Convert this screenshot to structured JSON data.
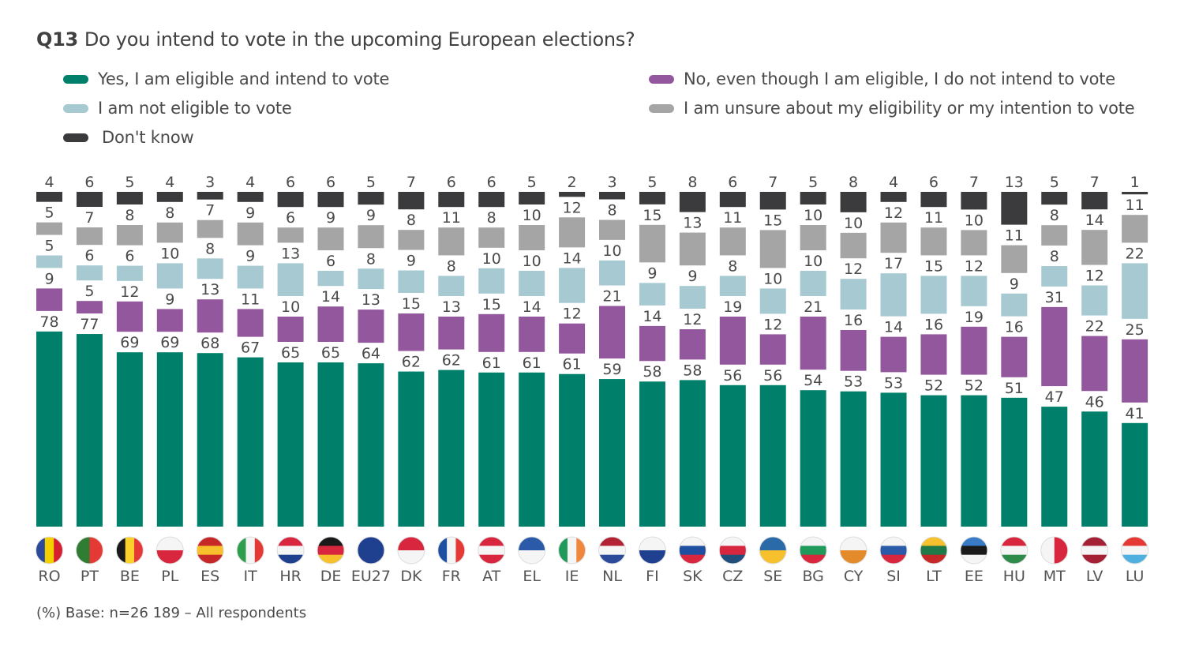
{
  "title": {
    "prefix": "Q13",
    "text": "Do you intend to vote in the upcoming European elections?"
  },
  "legend": [
    {
      "key": "yes",
      "label": "Yes, I am eligible and intend to vote",
      "color": "#00806a"
    },
    {
      "key": "not_eligible",
      "label": "I am not eligible to vote",
      "color": "#a6c9d2"
    },
    {
      "key": "dont_know",
      "label": "Don't know",
      "color": "#3b3b3d"
    },
    {
      "key": "no",
      "label": "No, even though I am eligible, I do not intend to vote",
      "color": "#93579e"
    },
    {
      "key": "unsure",
      "label": "I am unsure about my eligibility or my intention to vote",
      "color": "#a5a5a5"
    }
  ],
  "footnote": "(%) Base: n=26 189 – All respondents",
  "chart_data": {
    "type": "bar",
    "stacked": true,
    "title": "Do you intend to vote in the upcoming European elections?",
    "xlabel": "",
    "ylabel": "%",
    "categories": [
      "RO",
      "PT",
      "BE",
      "PL",
      "ES",
      "IT",
      "HR",
      "DE",
      "EU27",
      "DK",
      "FR",
      "AT",
      "EL",
      "IE",
      "NL",
      "FI",
      "SK",
      "CZ",
      "SE",
      "BG",
      "CY",
      "SI",
      "LT",
      "EE",
      "HU",
      "MT",
      "LV",
      "LU"
    ],
    "stack_order_bottom_to_top": [
      "yes",
      "no",
      "not_eligible",
      "unsure",
      "dont_know"
    ],
    "series": [
      {
        "key": "yes",
        "name": "Yes, I am eligible and intend to vote",
        "color": "#00806a",
        "values": [
          78,
          77,
          69,
          69,
          68,
          67,
          65,
          65,
          64,
          62,
          62,
          61,
          61,
          61,
          59,
          58,
          58,
          56,
          56,
          54,
          53,
          53,
          52,
          52,
          51,
          47,
          46,
          41
        ]
      },
      {
        "key": "no",
        "name": "No, even though I am eligible, I do not intend to vote",
        "color": "#93579e",
        "values": [
          9,
          5,
          12,
          9,
          13,
          11,
          10,
          14,
          13,
          15,
          13,
          15,
          14,
          12,
          21,
          14,
          12,
          19,
          12,
          21,
          16,
          14,
          16,
          19,
          16,
          31,
          22,
          25
        ]
      },
      {
        "key": "not_eligible",
        "name": "I am not eligible to vote",
        "color": "#a6c9d2",
        "values": [
          5,
          6,
          6,
          10,
          8,
          9,
          13,
          6,
          8,
          9,
          8,
          10,
          10,
          14,
          10,
          9,
          9,
          8,
          10,
          10,
          12,
          17,
          15,
          12,
          9,
          8,
          12,
          22
        ]
      },
      {
        "key": "unsure",
        "name": "I am unsure about my eligibility or my intention to vote",
        "color": "#a5a5a5",
        "values": [
          5,
          7,
          8,
          8,
          7,
          9,
          6,
          9,
          9,
          8,
          11,
          8,
          10,
          12,
          8,
          15,
          13,
          11,
          15,
          10,
          10,
          12,
          11,
          10,
          11,
          8,
          14,
          11
        ]
      },
      {
        "key": "dont_know",
        "name": "Don't know",
        "color": "#3b3b3d",
        "values": [
          4,
          6,
          5,
          4,
          3,
          4,
          6,
          6,
          5,
          7,
          6,
          6,
          5,
          2,
          3,
          5,
          8,
          6,
          7,
          5,
          8,
          4,
          6,
          7,
          13,
          5,
          7,
          1
        ]
      }
    ],
    "legend_position": "top",
    "grid": false,
    "flags": {
      "RO": [
        "#2b4a9a",
        "#f5d000",
        "#d6202f"
      ],
      "PT": [
        "#2e7d32",
        "#e53935"
      ],
      "BE": [
        "#1a1a1a",
        "#fbd22b",
        "#e53935"
      ],
      "PL": [
        "#f5f5f5",
        "#d7263d"
      ],
      "ES": [
        "#c62828",
        "#f6c12d",
        "#c62828"
      ],
      "IT": [
        "#2e9e4c",
        "#f5f5f5",
        "#e53935"
      ],
      "HR": [
        "#d7263d",
        "#f5f5f5",
        "#1f3f8f"
      ],
      "DE": [
        "#1a1a1a",
        "#d7263d",
        "#f6c12d"
      ],
      "EU27": [
        "#1f3f8f"
      ],
      "DK": [
        "#d7263d",
        "#f5f5f5"
      ],
      "FR": [
        "#1f4fa0",
        "#f5f5f5",
        "#e53935"
      ],
      "AT": [
        "#d7263d",
        "#f5f5f5",
        "#d7263d"
      ],
      "EL": [
        "#2b5aa8",
        "#f5f5f5"
      ],
      "IE": [
        "#1f9a5a",
        "#f5f5f5",
        "#f0873c"
      ],
      "NL": [
        "#b22234",
        "#f5f5f5",
        "#2b4a9a"
      ],
      "FI": [
        "#f5f5f5",
        "#1f3f8f"
      ],
      "SK": [
        "#f5f5f5",
        "#1f4fa0",
        "#d7263d"
      ],
      "CZ": [
        "#f5f5f5",
        "#d7263d",
        "#1f4f7a"
      ],
      "SE": [
        "#2b6aa8",
        "#f6c12d"
      ],
      "BG": [
        "#f5f5f5",
        "#1f9a5a",
        "#d7263d"
      ],
      "CY": [
        "#f5f5f5",
        "#e38b2a"
      ],
      "SI": [
        "#f5f5f5",
        "#2b5aa8",
        "#d7263d"
      ],
      "LT": [
        "#f6c12d",
        "#1f7a4a",
        "#c62828"
      ],
      "EE": [
        "#3a7bc8",
        "#1a1a1a",
        "#f5f5f5"
      ],
      "HU": [
        "#d7263d",
        "#f5f5f5",
        "#2e8b4a"
      ],
      "MT": [
        "#f5f5f5",
        "#d7263d"
      ],
      "LV": [
        "#a32035",
        "#f5f5f5",
        "#a32035"
      ],
      "LU": [
        "#e53935",
        "#f5f5f5",
        "#4fb0e0"
      ]
    }
  }
}
